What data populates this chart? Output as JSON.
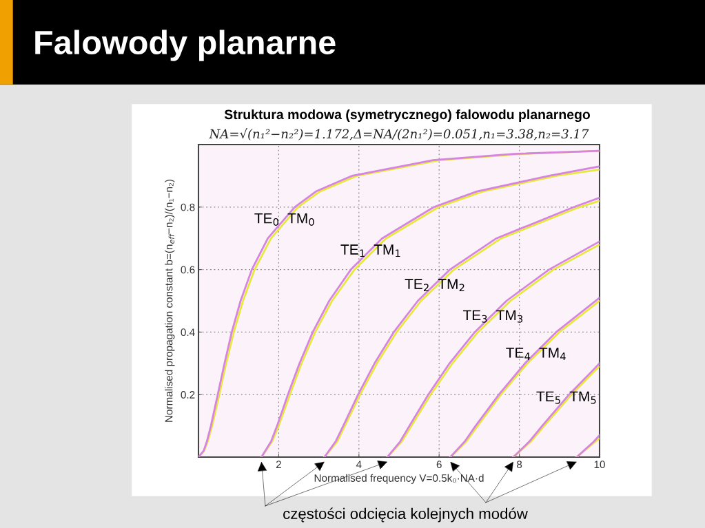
{
  "chart_data": {
    "type": "line",
    "title": "Falowody planarne",
    "subtitle": "Struktura modowa (symetrycznego) falowodu planarnego",
    "xlabel": "Normalised frequency V=0.5k₀·NA·d",
    "ylabel": "Normalised propagation constant b=(n$_{eff}$−n₂)/(n₁−n₂)",
    "xlim": [
      0,
      10
    ],
    "ylim": [
      0,
      1
    ],
    "xticks": [
      2,
      4,
      6,
      8,
      10
    ],
    "yticks": [
      0.2,
      0.4,
      0.6,
      0.8
    ],
    "grid": true,
    "line_style": "solid",
    "marker": "none",
    "series": [
      {
        "color": "#e6e83c",
        "x": [
          0,
          0.14,
          0.23,
          0.34,
          0.52,
          0.69,
          0.88,
          1.11,
          1.4,
          1.81,
          2.48,
          3.03,
          3.95,
          6.02,
          8.06,
          10
        ],
        "values": [
          0,
          0.02,
          0.05,
          0.1,
          0.2,
          0.3,
          0.4,
          0.5,
          0.6,
          0.7,
          0.8,
          0.85,
          0.9,
          0.95,
          0.97,
          0.98
        ]
      },
      {
        "color": "#d684e0",
        "x": [
          0,
          0.13,
          0.21,
          0.31,
          0.48,
          0.65,
          0.83,
          1.05,
          1.33,
          1.73,
          2.4,
          2.93,
          3.83,
          5.85,
          7.85,
          10
        ],
        "values": [
          0,
          0.02,
          0.05,
          0.1,
          0.2,
          0.3,
          0.4,
          0.5,
          0.6,
          0.7,
          0.8,
          0.85,
          0.9,
          0.95,
          0.97,
          0.98
        ]
      },
      {
        "color": "#e6e83c",
        "x": [
          1.57,
          1.84,
          2.0,
          2.28,
          2.57,
          2.91,
          3.33,
          3.89,
          4.68,
          5.99,
          7.09,
          8.92,
          10
        ],
        "values": [
          0,
          0.05,
          0.1,
          0.2,
          0.3,
          0.4,
          0.5,
          0.6,
          0.7,
          0.8,
          0.85,
          0.9,
          0.92
        ]
      },
      {
        "color": "#d684e0",
        "x": [
          1.57,
          1.81,
          1.96,
          2.23,
          2.52,
          2.85,
          3.26,
          3.8,
          4.58,
          5.87,
          6.94,
          8.74,
          10
        ],
        "values": [
          0,
          0.05,
          0.1,
          0.2,
          0.3,
          0.4,
          0.5,
          0.6,
          0.7,
          0.8,
          0.85,
          0.9,
          0.93
        ]
      },
      {
        "color": "#e6e83c",
        "x": [
          3.14,
          3.46,
          3.65,
          4.03,
          4.45,
          4.94,
          5.55,
          6.37,
          7.55,
          9.5,
          10
        ],
        "values": [
          0,
          0.05,
          0.1,
          0.2,
          0.3,
          0.4,
          0.5,
          0.6,
          0.7,
          0.8,
          0.82
        ]
      },
      {
        "color": "#d684e0",
        "x": [
          3.14,
          3.42,
          3.61,
          3.98,
          4.39,
          4.87,
          5.47,
          6.27,
          7.43,
          9.36,
          10
        ],
        "values": [
          0,
          0.05,
          0.1,
          0.2,
          0.3,
          0.4,
          0.5,
          0.6,
          0.7,
          0.8,
          0.83
        ]
      },
      {
        "color": "#e6e83c",
        "x": [
          4.71,
          5.07,
          5.31,
          5.79,
          6.33,
          6.97,
          7.78,
          8.85,
          10
        ],
        "values": [
          0,
          0.05,
          0.1,
          0.2,
          0.3,
          0.4,
          0.5,
          0.6,
          0.68
        ]
      },
      {
        "color": "#d684e0",
        "x": [
          4.71,
          5.03,
          5.26,
          5.73,
          6.26,
          6.89,
          7.68,
          8.74,
          10
        ],
        "values": [
          0,
          0.05,
          0.1,
          0.2,
          0.3,
          0.4,
          0.5,
          0.6,
          0.69
        ]
      },
      {
        "color": "#e6e83c",
        "x": [
          6.28,
          6.68,
          6.96,
          7.54,
          8.2,
          9.0,
          10
        ],
        "values": [
          0,
          0.05,
          0.1,
          0.2,
          0.3,
          0.4,
          0.5
        ]
      },
      {
        "color": "#d684e0",
        "x": [
          6.28,
          6.64,
          6.91,
          7.49,
          8.14,
          8.92,
          10
        ],
        "values": [
          0,
          0.05,
          0.1,
          0.2,
          0.3,
          0.4,
          0.51
        ]
      },
      {
        "color": "#e6e83c",
        "x": [
          7.85,
          8.29,
          8.62,
          9.3,
          9.91,
          10
        ],
        "values": [
          0,
          0.05,
          0.1,
          0.2,
          0.28,
          0.29
        ]
      },
      {
        "color": "#d684e0",
        "x": [
          7.85,
          8.25,
          8.57,
          9.24,
          9.85,
          10
        ],
        "values": [
          0,
          0.05,
          0.1,
          0.2,
          0.28,
          0.3
        ]
      },
      {
        "color": "#e6e83c",
        "x": [
          9.43,
          9.9,
          10
        ],
        "values": [
          0,
          0.05,
          0.06
        ]
      },
      {
        "color": "#d684e0",
        "x": [
          9.43,
          9.86,
          10
        ],
        "values": [
          0,
          0.05,
          0.07
        ]
      }
    ],
    "annotations": [
      "NA=√(n₁²−n₂²)=1.172,Δ=NA/(2n₁²)=0.051,n₁=3.38,n₂=3.17",
      {
        "text": "TE$_{0}$  TM$_{0}$",
        "x": 2.15,
        "y": 0.76
      },
      {
        "text": "TE$_{1}$  TM$_{1}$",
        "x": 4.3,
        "y": 0.66
      },
      {
        "text": "TE$_{2}$  TM$_{2}$",
        "x": 5.9,
        "y": 0.55
      },
      {
        "text": "TE$_{3}$  TM$_{3}$",
        "x": 7.35,
        "y": 0.45
      },
      {
        "text": "TE$_{4}$  TM$_{4}$",
        "x": 8.42,
        "y": 0.33
      },
      {
        "text": "TE$_{5}$  TM$_{5}$",
        "x": 9.18,
        "y": 0.19
      },
      "częstości odcięcia kolejnych modów"
    ]
  }
}
